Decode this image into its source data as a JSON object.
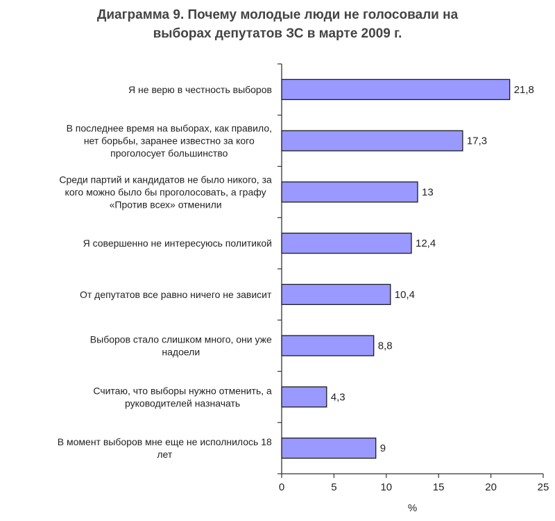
{
  "chart_data": {
    "type": "bar",
    "orientation": "horizontal",
    "title_lines": [
      "Диаграмма 9. Почему молодые люди не голосовали на",
      "выборах депутатов ЗС в марте 2009 г."
    ],
    "categories": [
      [
        "Я не верю в честность выборов"
      ],
      [
        "В последнее время на выборах, как правило,",
        "нет борьбы, заранее известно за кого",
        "проголосует большинство"
      ],
      [
        "Среди партий и кандидатов не было никого, за",
        "кого можно было бы проголосовать, а графу",
        "«Против всех» отменили"
      ],
      [
        "Я совершенно не интересуюсь политикой"
      ],
      [
        "От депутатов все равно ничего не зависит"
      ],
      [
        "Выборов стало слишком много, они уже",
        "надоели"
      ],
      [
        "Считаю, что выборы нужно отменить, а",
        "руководителей назначать"
      ],
      [
        "В момент выборов мне еще не исполнилось 18",
        "лет"
      ]
    ],
    "values": [
      21.8,
      17.3,
      13,
      12.4,
      10.4,
      8.8,
      4.3,
      9
    ],
    "value_labels": [
      "21,8",
      "17,3",
      "13",
      "12,4",
      "10,4",
      "8,8",
      "4,3",
      "9"
    ],
    "xlim": [
      0,
      25
    ],
    "xticks": [
      0,
      5,
      10,
      15,
      20,
      25
    ],
    "xlabel": "%",
    "grid": false,
    "legend": false,
    "colors": {
      "bar_fill": "#9999ff",
      "bar_stroke": "#1a1a1a",
      "axis": "#333333",
      "title": "#444444"
    }
  }
}
